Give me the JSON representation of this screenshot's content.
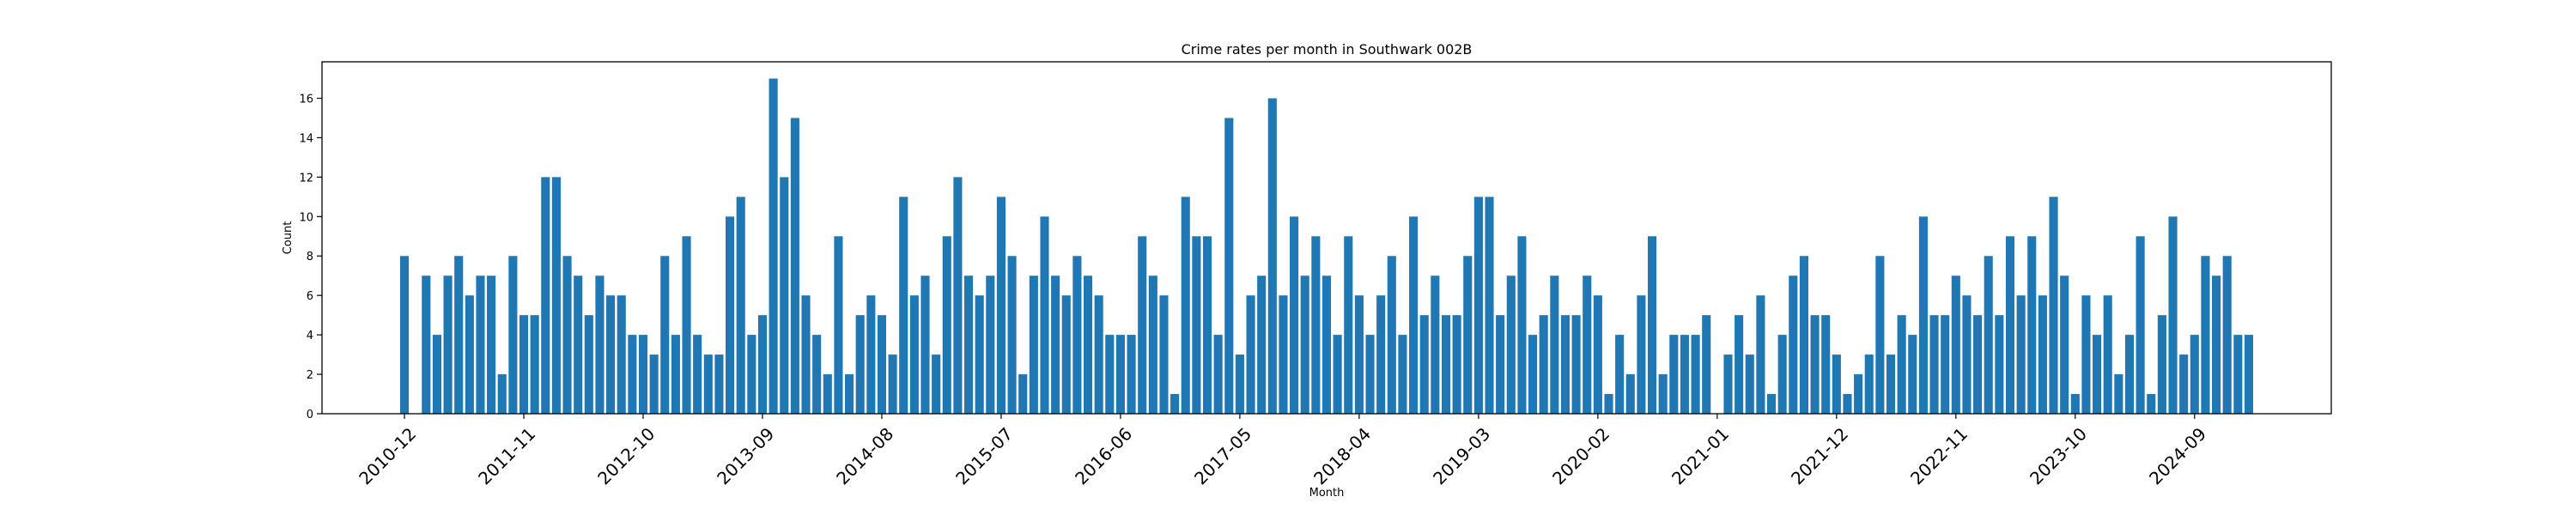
{
  "chart_data": {
    "type": "bar",
    "title": "Crime rates per month in Southwark 002B",
    "xlabel": "Month",
    "ylabel": "Count",
    "ylim": [
      0,
      17.85
    ],
    "yticks": [
      0,
      2,
      4,
      6,
      8,
      10,
      12,
      14,
      16
    ],
    "xtick_labels": [
      "2010-12",
      "2011-11",
      "2012-10",
      "2013-09",
      "2014-08",
      "2015-07",
      "2016-06",
      "2017-05",
      "2018-04",
      "2019-03",
      "2020-02",
      "2021-01",
      "2021-12",
      "2022-11",
      "2023-10",
      "2024-09"
    ],
    "grid": false,
    "bar_color": "#1f77b4",
    "start_month": "2010-12",
    "values": [
      8,
      0,
      7,
      4,
      7,
      8,
      6,
      7,
      7,
      2,
      8,
      5,
      5,
      12,
      12,
      8,
      7,
      5,
      7,
      6,
      6,
      4,
      4,
      3,
      8,
      4,
      9,
      4,
      3,
      3,
      10,
      11,
      4,
      5,
      17,
      12,
      15,
      6,
      4,
      2,
      9,
      2,
      5,
      6,
      5,
      3,
      11,
      6,
      7,
      3,
      9,
      12,
      7,
      6,
      7,
      11,
      8,
      2,
      7,
      10,
      7,
      6,
      8,
      7,
      6,
      4,
      4,
      4,
      9,
      7,
      6,
      1,
      11,
      9,
      9,
      4,
      15,
      3,
      6,
      7,
      16,
      6,
      10,
      7,
      9,
      7,
      4,
      9,
      6,
      4,
      6,
      8,
      4,
      10,
      5,
      7,
      5,
      5,
      8,
      11,
      11,
      5,
      7,
      9,
      4,
      5,
      7,
      5,
      5,
      7,
      6,
      1,
      4,
      2,
      6,
      9,
      2,
      4,
      4,
      4,
      5,
      0,
      3,
      5,
      3,
      6,
      1,
      4,
      7,
      8,
      5,
      5,
      3,
      1,
      2,
      3,
      8,
      3,
      5,
      4,
      10,
      5,
      5,
      7,
      6,
      5,
      8,
      5,
      9,
      6,
      9,
      6,
      11,
      7,
      1,
      6,
      4,
      6,
      2,
      4,
      9,
      1,
      5,
      10,
      3,
      4,
      8,
      7,
      8,
      4,
      4
    ]
  }
}
